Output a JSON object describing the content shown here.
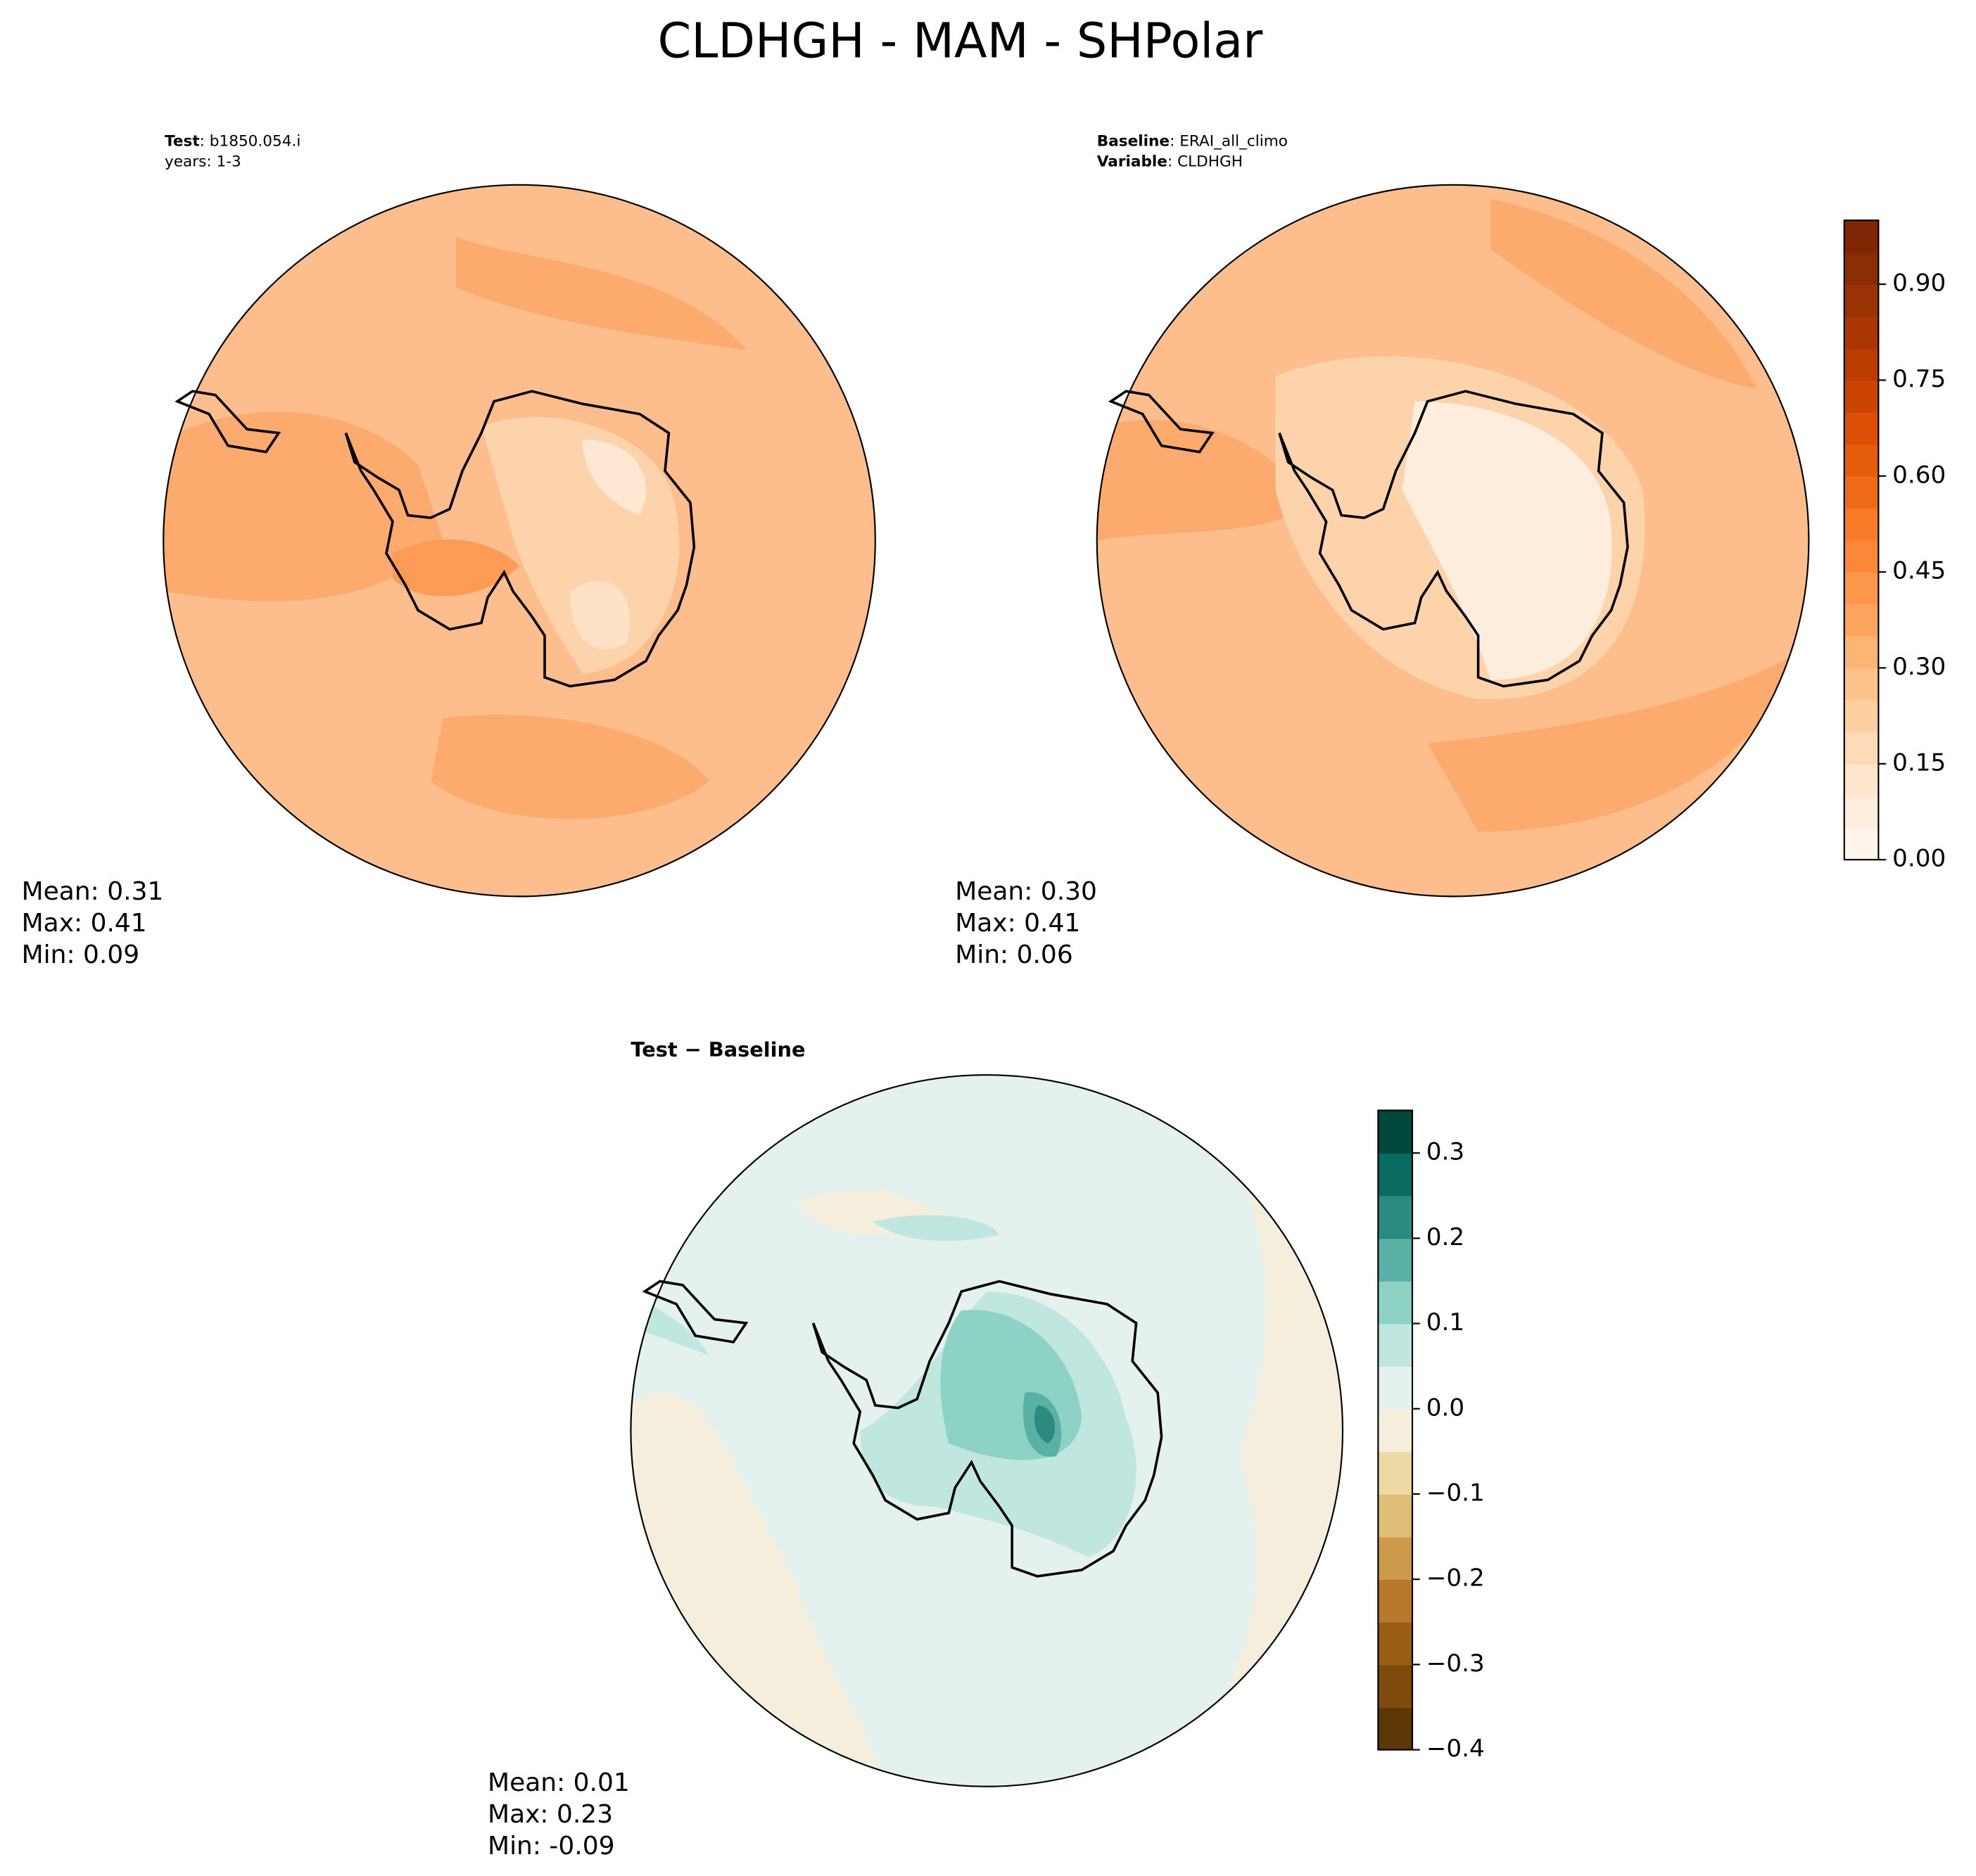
{
  "chart_data": {
    "type": "map",
    "title": "CLDHGH - MAM - SHPolar",
    "panels": [
      {
        "header": [
          {
            "label": "Test",
            "text": ": b1850.054.i"
          },
          {
            "text": "years: 1-3"
          }
        ],
        "stats": [
          "Mean:  0.31",
          "Max:  0.41",
          "Min:  0.09"
        ]
      },
      {
        "header": [
          {
            "label": "Baseline",
            "text": ": ERAI_all_climo"
          },
          {
            "label": "Variable",
            "text": ": CLDHGH"
          }
        ],
        "stats": [
          "Mean:  0.30",
          "Max:  0.41",
          "Min:  0.06"
        ]
      },
      {
        "header": [
          {
            "label": "Test − Baseline"
          }
        ],
        "stats": [
          "Mean:  0.01",
          "Max:  0.23",
          "Min: -0.09"
        ]
      }
    ],
    "colorbars": [
      {
        "clim": [
          0,
          1
        ],
        "ticks": [
          {
            "value": 0,
            "label": "0.00"
          },
          0.15,
          {
            "value": 0.3,
            "label": "0.30"
          },
          0.45,
          {
            "value": 0.6,
            "label": "0.60"
          },
          0.75,
          {
            "value": 0.9,
            "label": "0.90"
          }
        ],
        "colors": [
          "#fff5eb",
          "#feeddc",
          "#fee6ce",
          "#fddbb8",
          "#fdd0a2",
          "#fdc28a",
          "#fdb576",
          "#fda55f",
          "#fd974b",
          "#fb8838",
          "#f77b28",
          "#f06b18",
          "#e65c0d",
          "#db5006",
          "#cc4402",
          "#bb3d02",
          "#aa3703",
          "#9a3203",
          "#8b2d04",
          "#7f2704"
        ]
      },
      {
        "clim": [
          -0.4,
          0.35
        ],
        "ticks": [
          {
            "value": -0.4,
            "label": "−0.4"
          },
          {
            "value": -0.3,
            "label": "−0.3"
          },
          {
            "value": -0.2,
            "label": "−0.2"
          },
          {
            "value": -0.1,
            "label": "−0.1"
          },
          {
            "value": 0,
            "label": "0.0"
          },
          0.1,
          0.2,
          0.3
        ],
        "colors": [
          "#5e3706",
          "#7f4a0b",
          "#9a5d14",
          "#b8792d",
          "#cd9a4c",
          "#dfbf78",
          "#ecd9a3",
          "#f5eedc",
          "#e5f1ef",
          "#bfe6df",
          "#8dd2c5",
          "#5ab0a5",
          "#2c8b80",
          "#0a6b60",
          "#01493c"
        ]
      }
    ]
  }
}
